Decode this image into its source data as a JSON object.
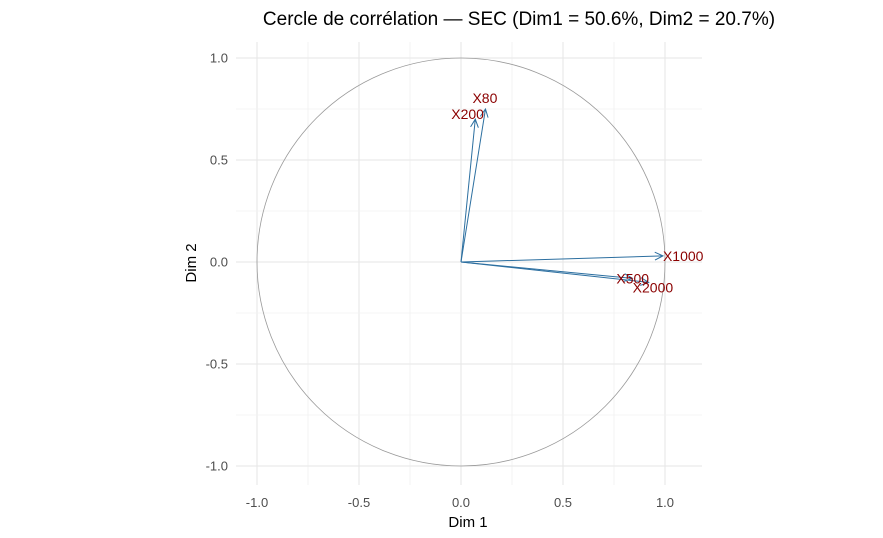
{
  "chart_data": {
    "type": "scatter",
    "title": "Cercle de corrélation — SEC (Dim1 = 50.6%, Dim2 = 20.7%)",
    "xlabel": "Dim 1",
    "ylabel": "Dim 2",
    "xlim": [
      -1.0,
      1.0
    ],
    "ylim": [
      -1.0,
      1.0
    ],
    "x_ticks": [
      "-1.0",
      "-0.5",
      "0.0",
      "0.5",
      "1.0"
    ],
    "y_ticks": [
      "-1.0",
      "-0.5",
      "0.0",
      "0.5",
      "1.0"
    ],
    "grid": true,
    "unit_circle": true,
    "arrow_color": "#2c6fa0",
    "label_color": "#8b0000",
    "circle_color": "#999999",
    "series": [
      {
        "name": "X80",
        "x": 0.12,
        "y": 0.75
      },
      {
        "name": "X200",
        "x": 0.07,
        "y": 0.7
      },
      {
        "name": "X1000",
        "x": 0.99,
        "y": 0.03
      },
      {
        "name": "X500",
        "x": 0.84,
        "y": -0.08
      },
      {
        "name": "X2000",
        "x": 0.92,
        "y": -0.1
      }
    ]
  }
}
